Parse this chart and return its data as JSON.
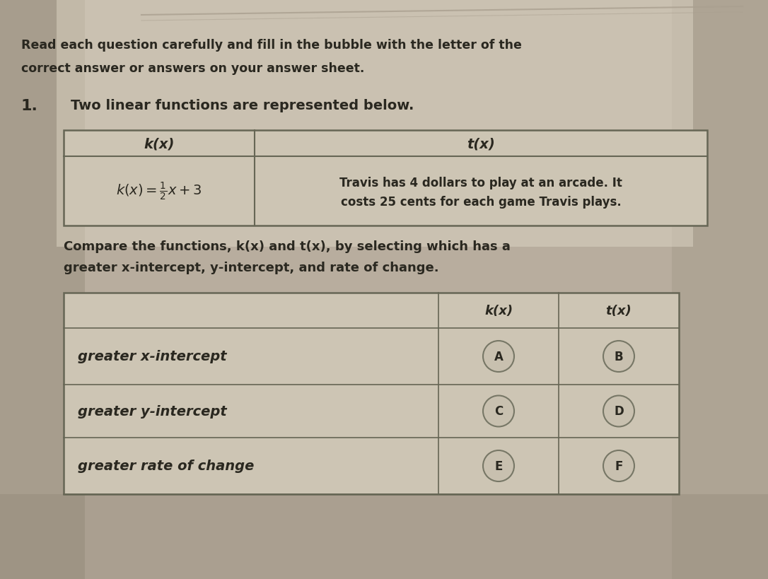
{
  "background_color": "#b8ad9e",
  "page_color": "#d4ccbb",
  "header_text_line1": "Read each question carefully and fill in the bubble with the letter of the",
  "header_text_line2": "correct answer or answers on your answer sheet.",
  "question_number": "1.",
  "question_text": "Two linear functions are represented below.",
  "table1_headers": [
    "k(x)",
    "t(x)"
  ],
  "table1_tx_text_line1": "Travis has 4 dollars to play at an arcade. It",
  "table1_tx_text_line2": "costs 25 cents for each game Travis plays.",
  "compare_text_line1": "Compare the functions, k(x) and t(x), by selecting which has a",
  "compare_text_line2": "greater x-intercept, y-intercept, and rate of change.",
  "table2_col_headers": [
    "k(x)",
    "t(x)"
  ],
  "table2_rows": [
    "greater x-intercept",
    "greater y-intercept",
    "greater rate of change"
  ],
  "table2_bubbles": [
    [
      "A",
      "B"
    ],
    [
      "C",
      "D"
    ],
    [
      "E",
      "F"
    ]
  ],
  "table_bg": "#cdc5b4",
  "table_border": "#666655",
  "text_color": "#2a2820",
  "header_line_color": "#999988",
  "bubble_face": "#c8c0af",
  "bubble_edge": "#777766"
}
